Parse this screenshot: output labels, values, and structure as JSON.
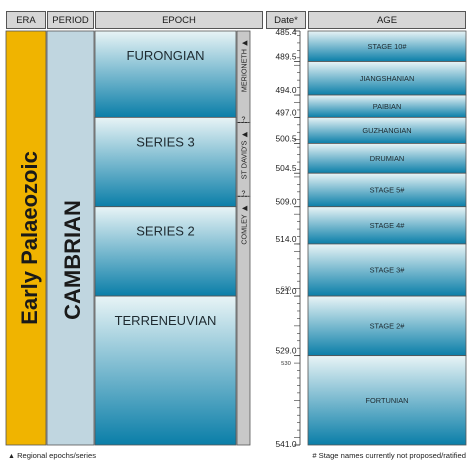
{
  "headers": {
    "era": "ERA",
    "period": "PERIOD",
    "epoch": "EPOCH",
    "date": "Date*",
    "age": "AGE"
  },
  "era": {
    "label": "Early Palaeozoic",
    "color": "#f0b400"
  },
  "period": {
    "label": "CAMBRIAN",
    "color": "#c0d6e0"
  },
  "epochs": [
    {
      "label": "FURONGIAN",
      "top": 485.4,
      "base": 497.0
    },
    {
      "label": "SERIES 3",
      "top": 497.0,
      "base": 509.0
    },
    {
      "label": "SERIES 2",
      "top": 509.0,
      "base": 521.0
    },
    {
      "label": "TERRENEUVIAN",
      "top": 521.0,
      "base": 541.0
    }
  ],
  "regional_series": [
    {
      "label": "MERIONETH",
      "top": 485.4,
      "base": 497.7
    },
    {
      "label": "ST DAVID'S",
      "top": 497.7,
      "base": 507.6
    },
    {
      "label": "COMLEY",
      "top": 507.6,
      "base": 541.0
    }
  ],
  "regional_boundary_marker": "?",
  "date_ticks": [
    "485.4",
    "489.5",
    "494.0",
    "497.0",
    "500.5",
    "504.5",
    "509.0",
    "514.0",
    "521.0",
    "529.0",
    "541.0"
  ],
  "minor_ticks": [
    "520",
    "530"
  ],
  "ages": [
    {
      "label": "STAGE 10#",
      "top": 485.4,
      "base": 489.5
    },
    {
      "label": "JIANGSHANIAN",
      "top": 489.5,
      "base": 494.0
    },
    {
      "label": "PAIBIAN",
      "top": 494.0,
      "base": 497.0
    },
    {
      "label": "GUZHANGIAN",
      "top": 497.0,
      "base": 500.5
    },
    {
      "label": "DRUMIAN",
      "top": 500.5,
      "base": 504.5
    },
    {
      "label": "STAGE 5#",
      "top": 504.5,
      "base": 509.0
    },
    {
      "label": "STAGE 4#",
      "top": 509.0,
      "base": 514.0
    },
    {
      "label": "STAGE 3#",
      "top": 514.0,
      "base": 521.0
    },
    {
      "label": "STAGE 2#",
      "top": 521.0,
      "base": 529.0
    },
    {
      "label": "FORTUNIAN",
      "top": 529.0,
      "base": 541.0
    }
  ],
  "footnotes": {
    "left_symbol": "▲",
    "left": "Regional epochs/series",
    "right": "# Stage names currently not proposed/ratified"
  },
  "colors": {
    "cell_top": "#e8f4f6",
    "cell_bottom": "#0a7ea8",
    "regional_band": "#c8c8c8",
    "outline": "#555555"
  }
}
